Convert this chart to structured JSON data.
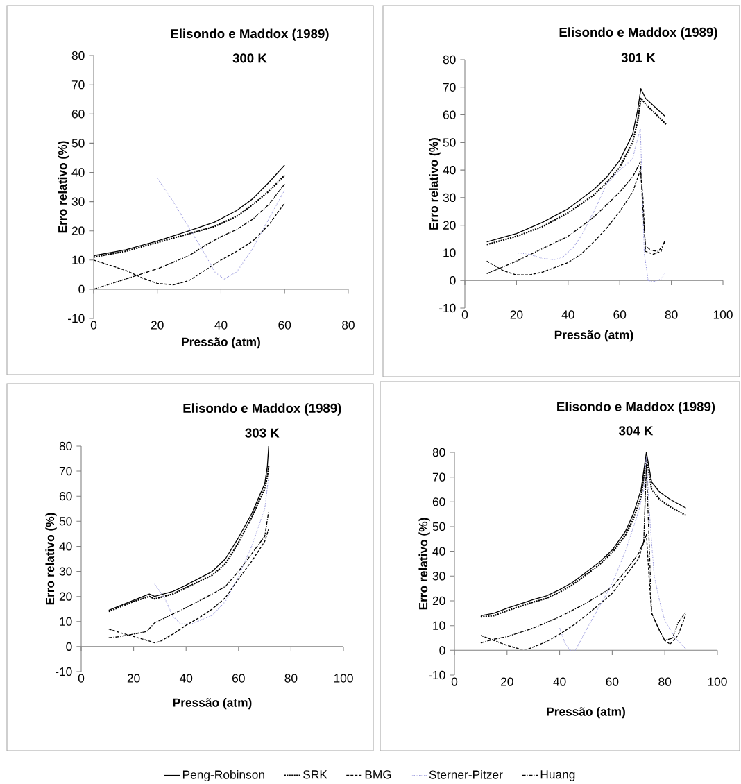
{
  "chart_data": [
    {
      "type": "line",
      "title": "Elisondo e Maddox (1989)",
      "subtitle": "300 K",
      "xlabel": "Pressão (atm)",
      "ylabel": "Erro relativo  (%)",
      "xlim": [
        0,
        80
      ],
      "xticks": [
        0,
        20,
        40,
        60,
        80
      ],
      "ylim": [
        -10,
        80
      ],
      "yticks": [
        -10,
        0,
        10,
        20,
        30,
        40,
        50,
        60,
        70,
        80
      ],
      "series": [
        {
          "color": "#000000",
          "line_style": "solid",
          "x": [
            0,
            10,
            20,
            30,
            38,
            45,
            50,
            55,
            60
          ],
          "values": [
            11.5,
            13.5,
            16.5,
            20,
            23,
            27,
            31,
            36.5,
            42.5
          ]
        },
        {
          "color": "#000000",
          "line_style": "dotted",
          "x": [
            0,
            10,
            20,
            30,
            38,
            45,
            50,
            55,
            60
          ],
          "values": [
            11,
            13,
            16,
            19,
            21.5,
            25,
            29,
            33.5,
            39
          ]
        },
        {
          "color": "#000000",
          "line_style": "dashed",
          "x": [
            0,
            10,
            15,
            20,
            25,
            30,
            35,
            40,
            45,
            50,
            55,
            60
          ],
          "values": [
            10,
            6.5,
            4,
            2,
            1.5,
            3,
            6.5,
            10,
            13,
            16.5,
            22,
            29.5
          ]
        },
        {
          "color": "#9999dd",
          "line_style": "dotted",
          "x": [
            20,
            25,
            30,
            35,
            38,
            41,
            45,
            50,
            55,
            60
          ],
          "values": [
            38,
            30,
            21,
            12,
            6,
            3.5,
            6,
            14,
            24,
            34
          ]
        },
        {
          "color": "#000000",
          "line_style": "dashdot",
          "x": [
            0,
            10,
            20,
            30,
            35,
            40,
            45,
            50,
            55,
            60
          ],
          "values": [
            0,
            3.5,
            7,
            11.5,
            15,
            18,
            20.5,
            24,
            29,
            36
          ]
        }
      ]
    },
    {
      "type": "line",
      "title": "Elisondo e Maddox (1989)",
      "subtitle": "301 K",
      "xlabel": "Pressão (atm)",
      "ylabel": "Erro relativo  (%)",
      "xlim": [
        0,
        100
      ],
      "xticks": [
        0,
        20,
        40,
        60,
        80,
        100
      ],
      "ylim": [
        -10,
        80
      ],
      "yticks": [
        -10,
        0,
        10,
        20,
        30,
        40,
        50,
        60,
        70,
        80
      ],
      "series": [
        {
          "color": "#000000",
          "line_style": "solid",
          "x": [
            8.5,
            20,
            30,
            40,
            50,
            55,
            60,
            65,
            67,
            68.2,
            70,
            77.5
          ],
          "values": [
            14,
            17,
            21,
            26,
            33,
            37.5,
            43.5,
            53,
            62,
            69.5,
            66,
            59.5
          ]
        },
        {
          "color": "#000000",
          "line_style": "dotted",
          "x": [
            8.5,
            20,
            30,
            40,
            50,
            55,
            60,
            65,
            67,
            68.2,
            70,
            78
          ],
          "values": [
            13,
            16,
            19.5,
            24.5,
            31,
            35.5,
            41,
            50,
            58,
            66,
            64,
            56.5
          ]
        },
        {
          "color": "#000000",
          "line_style": "dashed",
          "x": [
            8.5,
            15,
            20,
            25,
            30,
            40,
            45,
            50,
            55,
            60,
            65,
            68,
            69,
            70,
            73,
            76,
            77.5
          ],
          "values": [
            7,
            3.5,
            2,
            2,
            3,
            6.5,
            9.5,
            14,
            19,
            25,
            32,
            40,
            30,
            10.5,
            9.5,
            10.5,
            14.5
          ]
        },
        {
          "color": "#9999dd",
          "line_style": "dotted",
          "x": [
            20,
            25,
            30,
            35,
            38,
            42,
            45,
            50,
            55,
            60,
            65,
            66,
            68,
            68.5,
            69.5,
            71,
            73,
            76,
            77.5
          ],
          "values": [
            10,
            9.5,
            8,
            7.5,
            8.5,
            12,
            16,
            25,
            35,
            40,
            44,
            48,
            55,
            40,
            10,
            0,
            -0.5,
            0.5,
            2.5
          ]
        },
        {
          "color": "#000000",
          "line_style": "dashdot",
          "x": [
            8.5,
            15,
            20,
            30,
            40,
            50,
            55,
            60,
            65,
            68,
            69,
            70,
            72,
            75,
            77.5
          ],
          "values": [
            2.5,
            5,
            7,
            11.5,
            16,
            23,
            27.5,
            32,
            37.5,
            43,
            25,
            12.5,
            11,
            10.5,
            14
          ]
        }
      ]
    },
    {
      "type": "line",
      "title": "Elisondo e Maddox (1989)",
      "subtitle": "303 K",
      "xlabel": "Pressão (atm)",
      "ylabel": "Erro relativo  (%)",
      "xlim": [
        0,
        100
      ],
      "xticks": [
        0,
        20,
        40,
        60,
        80,
        100
      ],
      "ylim": [
        -10,
        80
      ],
      "yticks": [
        -10,
        0,
        10,
        20,
        30,
        40,
        50,
        60,
        70,
        80
      ],
      "legend": "bottom",
      "series": [
        {
          "name": "Peng-Robinson",
          "color": "#000000",
          "line_style": "solid",
          "x": [
            10.5,
            20,
            26,
            28,
            35,
            40,
            50,
            55,
            60,
            65,
            70,
            71,
            71.5
          ],
          "values": [
            14.5,
            18.5,
            21,
            20,
            22,
            24.5,
            30,
            35,
            43.5,
            53,
            65,
            72,
            80
          ]
        },
        {
          "name": "SRK",
          "color": "#000000",
          "line_style": "dotted",
          "x": [
            10.5,
            20,
            26,
            28,
            35,
            40,
            50,
            55,
            60,
            65,
            70,
            71,
            71.5
          ],
          "values": [
            14,
            18,
            20,
            19,
            21,
            23.5,
            28.5,
            33,
            41.5,
            51.5,
            63,
            68,
            72
          ]
        },
        {
          "name": "BMG",
          "color": "#000000",
          "line_style": "dashed",
          "x": [
            10.5,
            15,
            20,
            25,
            28,
            30,
            35,
            40,
            45,
            50,
            55,
            60,
            65,
            70,
            71.5
          ],
          "values": [
            7,
            5.5,
            4,
            2.5,
            1.5,
            2,
            5,
            8.5,
            11.5,
            15,
            19.5,
            27,
            34,
            42,
            47
          ]
        },
        {
          "name": "Sterner-Pitzer",
          "color": "#9999dd",
          "line_style": "dotted",
          "x": [
            28,
            32,
            35,
            38,
            42,
            50,
            55,
            60,
            65,
            70,
            71.5
          ],
          "values": [
            25,
            19,
            12,
            9,
            9,
            12.5,
            18,
            28,
            40,
            55,
            68
          ]
        },
        {
          "name": "Huang",
          "color": "#000000",
          "line_style": "dashdot",
          "x": [
            10.5,
            15,
            20,
            25,
            28,
            35,
            40,
            50,
            55,
            60,
            65,
            70,
            71.5
          ],
          "values": [
            3.5,
            4,
            5,
            6,
            9.5,
            13,
            15.5,
            21,
            24,
            30,
            37,
            44,
            54
          ]
        }
      ]
    },
    {
      "type": "line",
      "title": "Elisondo e Maddox (1989)",
      "subtitle": "304 K",
      "xlabel": "Pressão (atm)",
      "ylabel": "Erro relativo  (%)",
      "xlim": [
        0,
        100
      ],
      "xticks": [
        0,
        20,
        40,
        60,
        80,
        100
      ],
      "ylim": [
        -10,
        80
      ],
      "yticks": [
        -10,
        0,
        10,
        20,
        30,
        40,
        50,
        60,
        70,
        80
      ],
      "series": [
        {
          "color": "#000000",
          "line_style": "solid",
          "x": [
            10,
            15,
            20,
            30,
            35,
            40,
            45,
            50,
            55,
            60,
            65,
            68,
            71,
            73,
            75,
            78,
            82,
            88
          ],
          "values": [
            14,
            15,
            17,
            20.5,
            22,
            24.5,
            27.5,
            31.5,
            35.5,
            40.5,
            48,
            55,
            65,
            80,
            68,
            64,
            61,
            57.5
          ]
        },
        {
          "color": "#000000",
          "line_style": "dotted",
          "x": [
            10,
            15,
            20,
            30,
            35,
            40,
            45,
            50,
            55,
            60,
            65,
            68,
            71,
            73,
            75,
            78,
            82,
            88
          ],
          "values": [
            13.5,
            14,
            16,
            19.5,
            21,
            23.5,
            26.5,
            30.5,
            34.5,
            39.5,
            46.5,
            53,
            62,
            78,
            65,
            61,
            58,
            54.5
          ]
        },
        {
          "color": "#000000",
          "line_style": "dashed",
          "x": [
            10,
            15,
            20,
            25,
            28,
            35,
            40,
            45,
            50,
            55,
            60,
            65,
            70,
            73,
            74,
            75,
            78,
            80,
            82,
            85,
            88
          ],
          "values": [
            6,
            4,
            2,
            0.5,
            0.5,
            3.5,
            6.5,
            10,
            14,
            18.5,
            23,
            30,
            37,
            47,
            30,
            15,
            8,
            4,
            2.5,
            6,
            14.5
          ]
        },
        {
          "color": "#9999dd",
          "line_style": "dotted",
          "x": [
            40,
            42,
            44,
            46,
            50,
            55,
            60,
            65,
            70,
            72,
            73,
            74.5,
            76,
            78,
            80,
            84,
            88
          ],
          "values": [
            9,
            3,
            0,
            0,
            8,
            17.5,
            27,
            40,
            56,
            65,
            78,
            50,
            30,
            20,
            12,
            5,
            0.5
          ]
        },
        {
          "color": "#000000",
          "line_style": "dashdot",
          "x": [
            10,
            15,
            20,
            30,
            40,
            50,
            60,
            65,
            70,
            72,
            73,
            74,
            75,
            78,
            80,
            83,
            85,
            88
          ],
          "values": [
            3,
            4.5,
            5.5,
            9,
            13.5,
            19,
            25.5,
            32,
            39,
            44,
            75,
            45,
            15,
            8,
            4,
            5,
            11,
            15.5
          ]
        }
      ]
    }
  ]
}
